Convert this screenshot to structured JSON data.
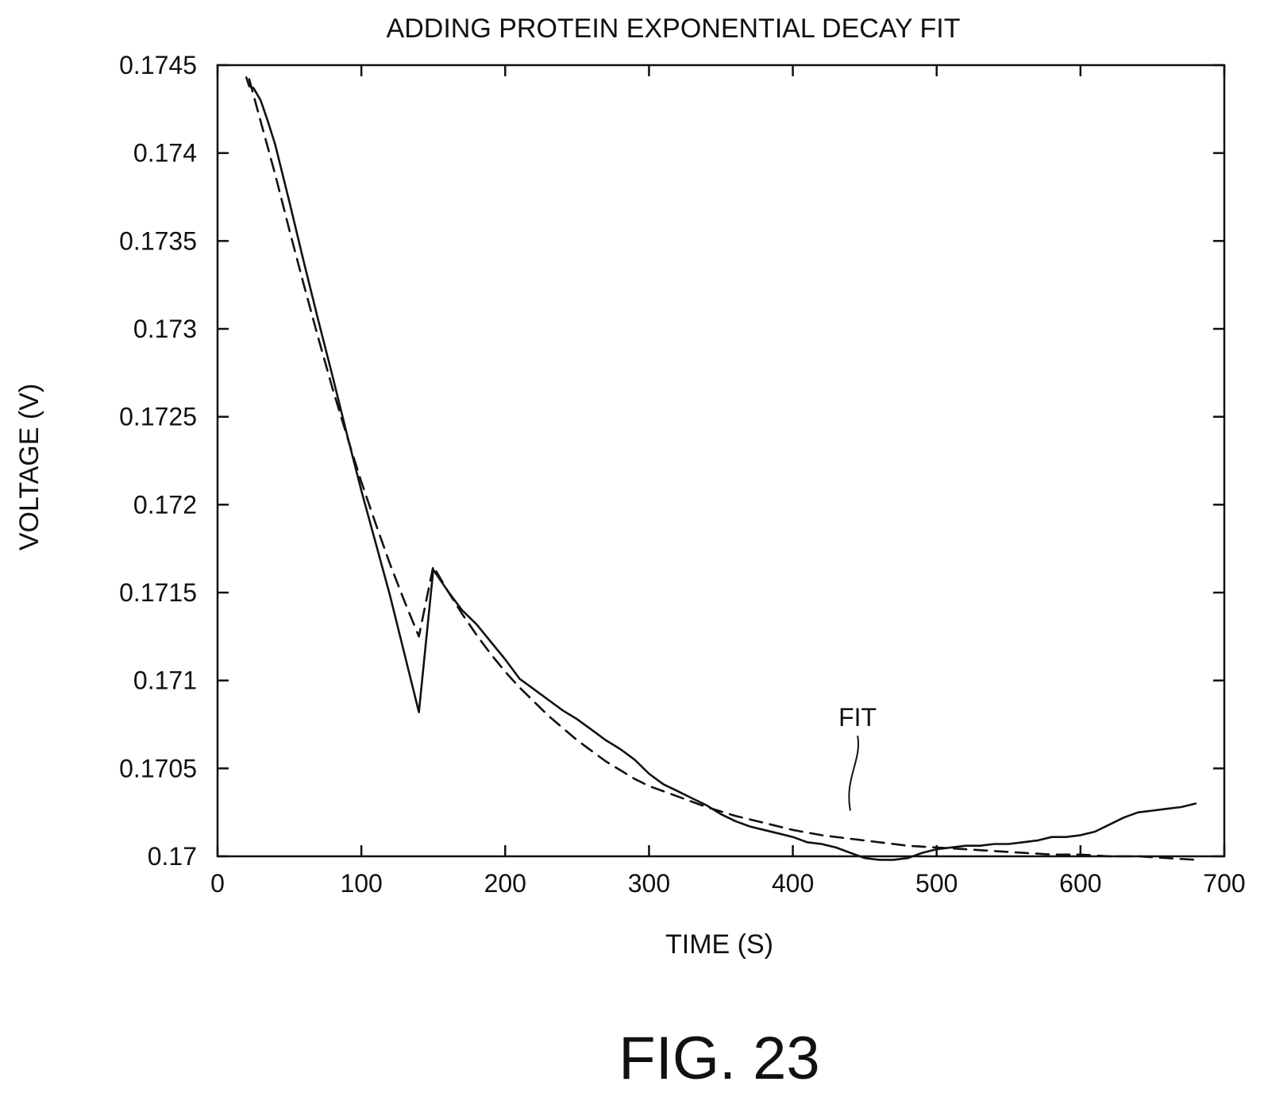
{
  "chart_data": {
    "type": "line",
    "title": "ADDING PROTEIN EXPONENTIAL DECAY FIT",
    "xlabel": "TIME (S)",
    "ylabel": "VOLTAGE (V)",
    "xlim": [
      0,
      700
    ],
    "ylim": [
      0.17,
      0.1745
    ],
    "xticks": [
      "0",
      "100",
      "200",
      "300",
      "400",
      "500",
      "600",
      "700"
    ],
    "yticks": [
      "0.17",
      "0.1705",
      "0.171",
      "0.1715",
      "0.172",
      "0.1725",
      "0.173",
      "0.1735",
      "0.174",
      "0.1745"
    ],
    "grid": false,
    "legend": "none",
    "series": [
      {
        "style": "solid",
        "x": [
          20,
          22,
          25,
          30,
          35,
          40,
          50,
          60,
          70,
          80,
          90,
          100,
          110,
          120,
          130,
          140,
          150,
          160,
          170,
          180,
          190,
          200,
          210,
          220,
          230,
          240,
          250,
          260,
          270,
          280,
          290,
          300,
          310,
          320,
          330,
          340,
          350,
          360,
          370,
          380,
          390,
          400,
          410,
          420,
          430,
          440,
          450,
          460,
          470,
          480,
          490,
          500,
          510,
          520,
          530,
          540,
          550,
          560,
          570,
          580,
          590,
          600,
          610,
          620,
          630,
          640,
          650,
          660,
          670,
          680
        ],
        "y": [
          0.17443,
          0.17438,
          0.17437,
          0.1743,
          0.17418,
          0.17405,
          0.17372,
          0.17338,
          0.17305,
          0.17273,
          0.1724,
          0.17208,
          0.17178,
          0.17148,
          0.17115,
          0.17082,
          0.17163,
          0.17151,
          0.1714,
          0.17132,
          0.17122,
          0.17112,
          0.17101,
          0.17095,
          0.17089,
          0.17083,
          0.17078,
          0.17072,
          0.17066,
          0.17061,
          0.17055,
          0.17047,
          0.17041,
          0.17037,
          0.17033,
          0.17029,
          0.17024,
          0.1702,
          0.17017,
          0.17015,
          0.17013,
          0.17011,
          0.17008,
          0.17007,
          0.17005,
          0.17002,
          0.16999,
          0.16998,
          0.16998,
          0.16999,
          0.17002,
          0.17004,
          0.17005,
          0.17006,
          0.17006,
          0.17007,
          0.17007,
          0.17008,
          0.17009,
          0.17011,
          0.17011,
          0.17012,
          0.17014,
          0.17018,
          0.17022,
          0.17025,
          0.17026,
          0.17027,
          0.17028,
          0.1703
        ]
      },
      {
        "name": "FIT",
        "style": "dashed",
        "x": [
          22,
          30,
          40,
          50,
          60,
          70,
          80,
          90,
          100,
          110,
          120,
          130,
          140,
          150,
          160,
          170,
          180,
          190,
          200,
          210,
          220,
          230,
          240,
          250,
          260,
          270,
          280,
          290,
          300,
          320,
          340,
          360,
          380,
          400,
          420,
          440,
          460,
          480,
          500,
          520,
          540,
          560,
          580,
          600,
          620,
          640,
          660,
          680
        ],
        "y": [
          0.17442,
          0.17418,
          0.17388,
          0.17356,
          0.17325,
          0.17295,
          0.17266,
          0.17239,
          0.17213,
          0.17189,
          0.17166,
          0.17145,
          0.17125,
          0.17165,
          0.17151,
          0.17138,
          0.17126,
          0.17115,
          0.17105,
          0.17096,
          0.17088,
          0.1708,
          0.17073,
          0.17066,
          0.1706,
          0.17054,
          0.17049,
          0.17044,
          0.1704,
          0.17034,
          0.17028,
          0.17023,
          0.17019,
          0.17015,
          0.17012,
          0.1701,
          0.17008,
          0.17006,
          0.17005,
          0.17004,
          0.17003,
          0.17002,
          0.17001,
          0.17001,
          0.17,
          0.17,
          0.16999,
          0.16998
        ]
      }
    ],
    "annotations": [
      {
        "text": "FIT",
        "x": 445,
        "y": 0.17074,
        "target_x": 440,
        "target_y": 0.17026
      }
    ]
  },
  "figure_label": "FIG. 23"
}
